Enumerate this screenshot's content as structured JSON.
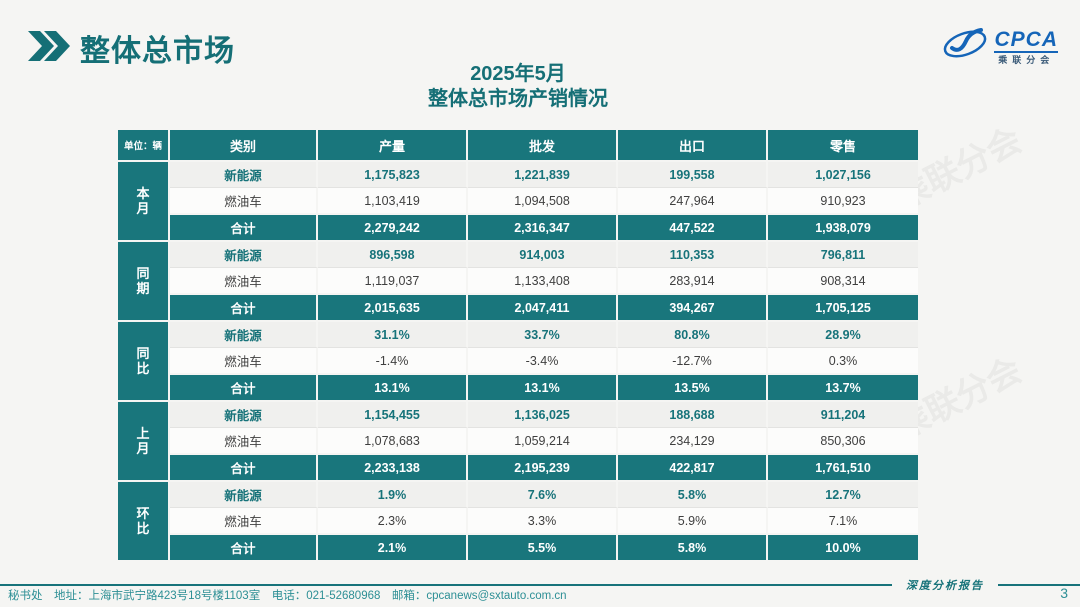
{
  "page": {
    "header_title": "整体总市场",
    "subtitle_line1": "2025年5月",
    "subtitle_line2": "整体总市场产销情况",
    "unit_label": "单位：辆",
    "watermark": "CPCA 乘联分会",
    "report_tag": "深度分析报告",
    "footer_contact": "秘书处　地址：上海市武宁路423号18号楼1103室　电话：021-52680968　邮箱：cpcanews@sxtauto.com.cn",
    "page_number": "3"
  },
  "logo": {
    "name": "CPCA",
    "subtext": "乘联分会"
  },
  "colors": {
    "teal": "#19767c",
    "teal_text": "#17737a",
    "logo_blue": "#1565b8",
    "page_bg": "#f5f5f3"
  },
  "table": {
    "columns": [
      "类别",
      "产量",
      "批发",
      "出口",
      "零售"
    ],
    "groups": [
      {
        "label": "本月",
        "rows": [
          {
            "category": "新能源",
            "style": "nev",
            "values": [
              "1,175,823",
              "1,221,839",
              "199,558",
              "1,027,156"
            ]
          },
          {
            "category": "燃油车",
            "style": "ice",
            "values": [
              "1,103,419",
              "1,094,508",
              "247,964",
              "910,923"
            ]
          },
          {
            "category": "合计",
            "style": "total",
            "values": [
              "2,279,242",
              "2,316,347",
              "447,522",
              "1,938,079"
            ]
          }
        ]
      },
      {
        "label": "同期",
        "rows": [
          {
            "category": "新能源",
            "style": "nev",
            "values": [
              "896,598",
              "914,003",
              "110,353",
              "796,811"
            ]
          },
          {
            "category": "燃油车",
            "style": "ice",
            "values": [
              "1,119,037",
              "1,133,408",
              "283,914",
              "908,314"
            ]
          },
          {
            "category": "合计",
            "style": "total",
            "values": [
              "2,015,635",
              "2,047,411",
              "394,267",
              "1,705,125"
            ]
          }
        ]
      },
      {
        "label": "同比",
        "rows": [
          {
            "category": "新能源",
            "style": "nev",
            "values": [
              "31.1%",
              "33.7%",
              "80.8%",
              "28.9%"
            ]
          },
          {
            "category": "燃油车",
            "style": "ice",
            "values": [
              "-1.4%",
              "-3.4%",
              "-12.7%",
              "0.3%"
            ]
          },
          {
            "category": "合计",
            "style": "total",
            "values": [
              "13.1%",
              "13.1%",
              "13.5%",
              "13.7%"
            ]
          }
        ]
      },
      {
        "label": "上月",
        "rows": [
          {
            "category": "新能源",
            "style": "nev",
            "values": [
              "1,154,455",
              "1,136,025",
              "188,688",
              "911,204"
            ]
          },
          {
            "category": "燃油车",
            "style": "ice",
            "values": [
              "1,078,683",
              "1,059,214",
              "234,129",
              "850,306"
            ]
          },
          {
            "category": "合计",
            "style": "total",
            "values": [
              "2,233,138",
              "2,195,239",
              "422,817",
              "1,761,510"
            ]
          }
        ]
      },
      {
        "label": "环比",
        "rows": [
          {
            "category": "新能源",
            "style": "nev",
            "values": [
              "1.9%",
              "7.6%",
              "5.8%",
              "12.7%"
            ]
          },
          {
            "category": "燃油车",
            "style": "ice",
            "values": [
              "2.3%",
              "3.3%",
              "5.9%",
              "7.1%"
            ]
          },
          {
            "category": "合计",
            "style": "total",
            "values": [
              "2.1%",
              "5.5%",
              "5.8%",
              "10.0%"
            ]
          }
        ]
      }
    ]
  }
}
